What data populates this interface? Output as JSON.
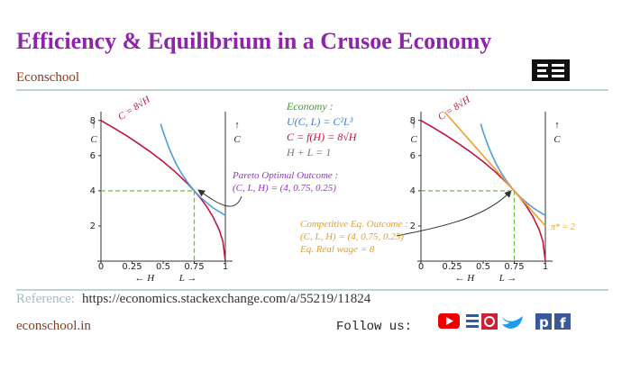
{
  "header": {
    "title": "Efficiency & Equilibrium in a Crusoe Economy",
    "brand": "Econschool"
  },
  "economy": {
    "lines": [
      {
        "text": "Economy :",
        "color": "#3f9a2a"
      },
      {
        "text": "U(C, L)  =  C²L³",
        "color": "#3a7fd0"
      },
      {
        "text": "C = f(H) = 8√H",
        "color": "#c0143c"
      },
      {
        "text": "H + L = 1",
        "color": "#777777"
      }
    ]
  },
  "chart_data": [
    {
      "type": "line",
      "xlim": [
        0,
        1
      ],
      "ylim": [
        0,
        8.5
      ],
      "xticks": [
        0,
        0.25,
        0.5,
        0.75,
        1
      ],
      "yticks": [
        2,
        4,
        6,
        8
      ],
      "y_label": "C",
      "h_label": "← H",
      "l_label": "L →",
      "optimum": {
        "x": 0.75,
        "y": 4,
        "color": "#6bbf3b"
      },
      "series": [
        {
          "name": "C = 8√H",
          "color": "#c0143c",
          "x": [
            0,
            0.1,
            0.2,
            0.3,
            0.4,
            0.5,
            0.6,
            0.7,
            0.75,
            0.8,
            0.85,
            0.9,
            0.95,
            0.98,
            1
          ],
          "values": [
            8,
            7.59,
            7.16,
            6.69,
            6.2,
            5.66,
            5.06,
            4.38,
            4,
            3.58,
            3.1,
            2.53,
            1.79,
            1.13,
            0
          ]
        },
        {
          "color": "#4a9fe0",
          "x": [
            0.48,
            0.5,
            0.55,
            0.6,
            0.65,
            0.7,
            0.75,
            0.8,
            0.85,
            0.9,
            0.95,
            1
          ],
          "values": [
            7.81,
            7.35,
            6.37,
            5.59,
            4.96,
            4.44,
            4,
            3.63,
            3.32,
            3.04,
            2.81,
            2.6
          ]
        }
      ],
      "annotation": {
        "color": "#9b30d0",
        "lines": [
          "Pareto Optimal Outcome :",
          "(C, L, H)  =  (4, 0.75, 0.25)"
        ]
      }
    },
    {
      "type": "line",
      "xlim": [
        0,
        1
      ],
      "ylim": [
        0,
        8.5
      ],
      "xticks": [
        0,
        0.25,
        0.5,
        0.75,
        1
      ],
      "yticks": [
        2,
        4,
        6,
        8
      ],
      "y_label": "C",
      "h_label": "← H",
      "l_label": "L →",
      "optimum": {
        "x": 0.75,
        "y": 4,
        "color": "#6bbf3b"
      },
      "series": [
        {
          "name": "C = 8√H",
          "color": "#c0143c",
          "x": [
            0,
            0.1,
            0.2,
            0.3,
            0.4,
            0.5,
            0.6,
            0.7,
            0.75,
            0.8,
            0.85,
            0.9,
            0.95,
            0.98,
            1
          ],
          "values": [
            8,
            7.59,
            7.16,
            6.69,
            6.2,
            5.66,
            5.06,
            4.38,
            4,
            3.58,
            3.1,
            2.53,
            1.79,
            1.13,
            0
          ]
        },
        {
          "color": "#4a9fe0",
          "x": [
            0.48,
            0.5,
            0.55,
            0.6,
            0.65,
            0.7,
            0.75,
            0.8,
            0.85,
            0.9,
            0.95,
            1
          ],
          "values": [
            7.81,
            7.35,
            6.37,
            5.59,
            4.96,
            4.44,
            4,
            3.63,
            3.32,
            3.04,
            2.81,
            2.6
          ]
        },
        {
          "name": "π* = 2",
          "color": "#f0a030",
          "x": [
            0.19,
            1
          ],
          "values": [
            8.48,
            2
          ]
        }
      ],
      "annotation": {
        "color": "#e8a020",
        "lines": [
          "Competitive Eq. Outcome :",
          "(C, L, H)  =  (4, 0.75, 0.25)",
          "Eq. Real wage  =  8"
        ]
      }
    }
  ],
  "footer": {
    "reference_label": "Reference:",
    "reference_url": "https://economics.stackexchange.com/a/55219/11824",
    "site": "econschool.in",
    "follow": "Follow us:"
  }
}
